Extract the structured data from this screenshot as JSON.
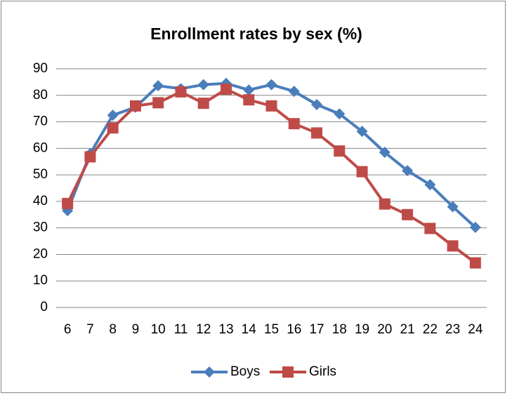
{
  "chart_data": {
    "type": "line",
    "title": "Enrollment rates by sex (%)",
    "categories": [
      "6",
      "7",
      "8",
      "9",
      "10",
      "11",
      "12",
      "13",
      "14",
      "15",
      "16",
      "17",
      "18",
      "19",
      "20",
      "21",
      "22",
      "23",
      "24"
    ],
    "series": [
      {
        "name": "Boys",
        "color": "#4a7ebb",
        "marker": "diamond",
        "values": [
          36.5,
          58,
          72.5,
          75.5,
          83.6,
          82.5,
          84,
          84.5,
          82,
          84,
          81.5,
          76.5,
          73,
          66.4,
          58.5,
          51.6,
          46.3,
          38,
          30.2
        ]
      },
      {
        "name": "Girls",
        "color": "#be4b48",
        "marker": "square",
        "values": [
          39.2,
          56.8,
          67.7,
          76,
          77.2,
          81.3,
          77,
          82.3,
          78.3,
          76,
          69.3,
          65.8,
          59,
          51.2,
          39,
          35,
          29.8,
          23.2,
          16.8
        ]
      }
    ],
    "ylim": [
      0,
      90
    ],
    "yticks": [
      0,
      10,
      20,
      30,
      40,
      50,
      60,
      70,
      80,
      90
    ],
    "grid": true,
    "legend": "bottom"
  }
}
